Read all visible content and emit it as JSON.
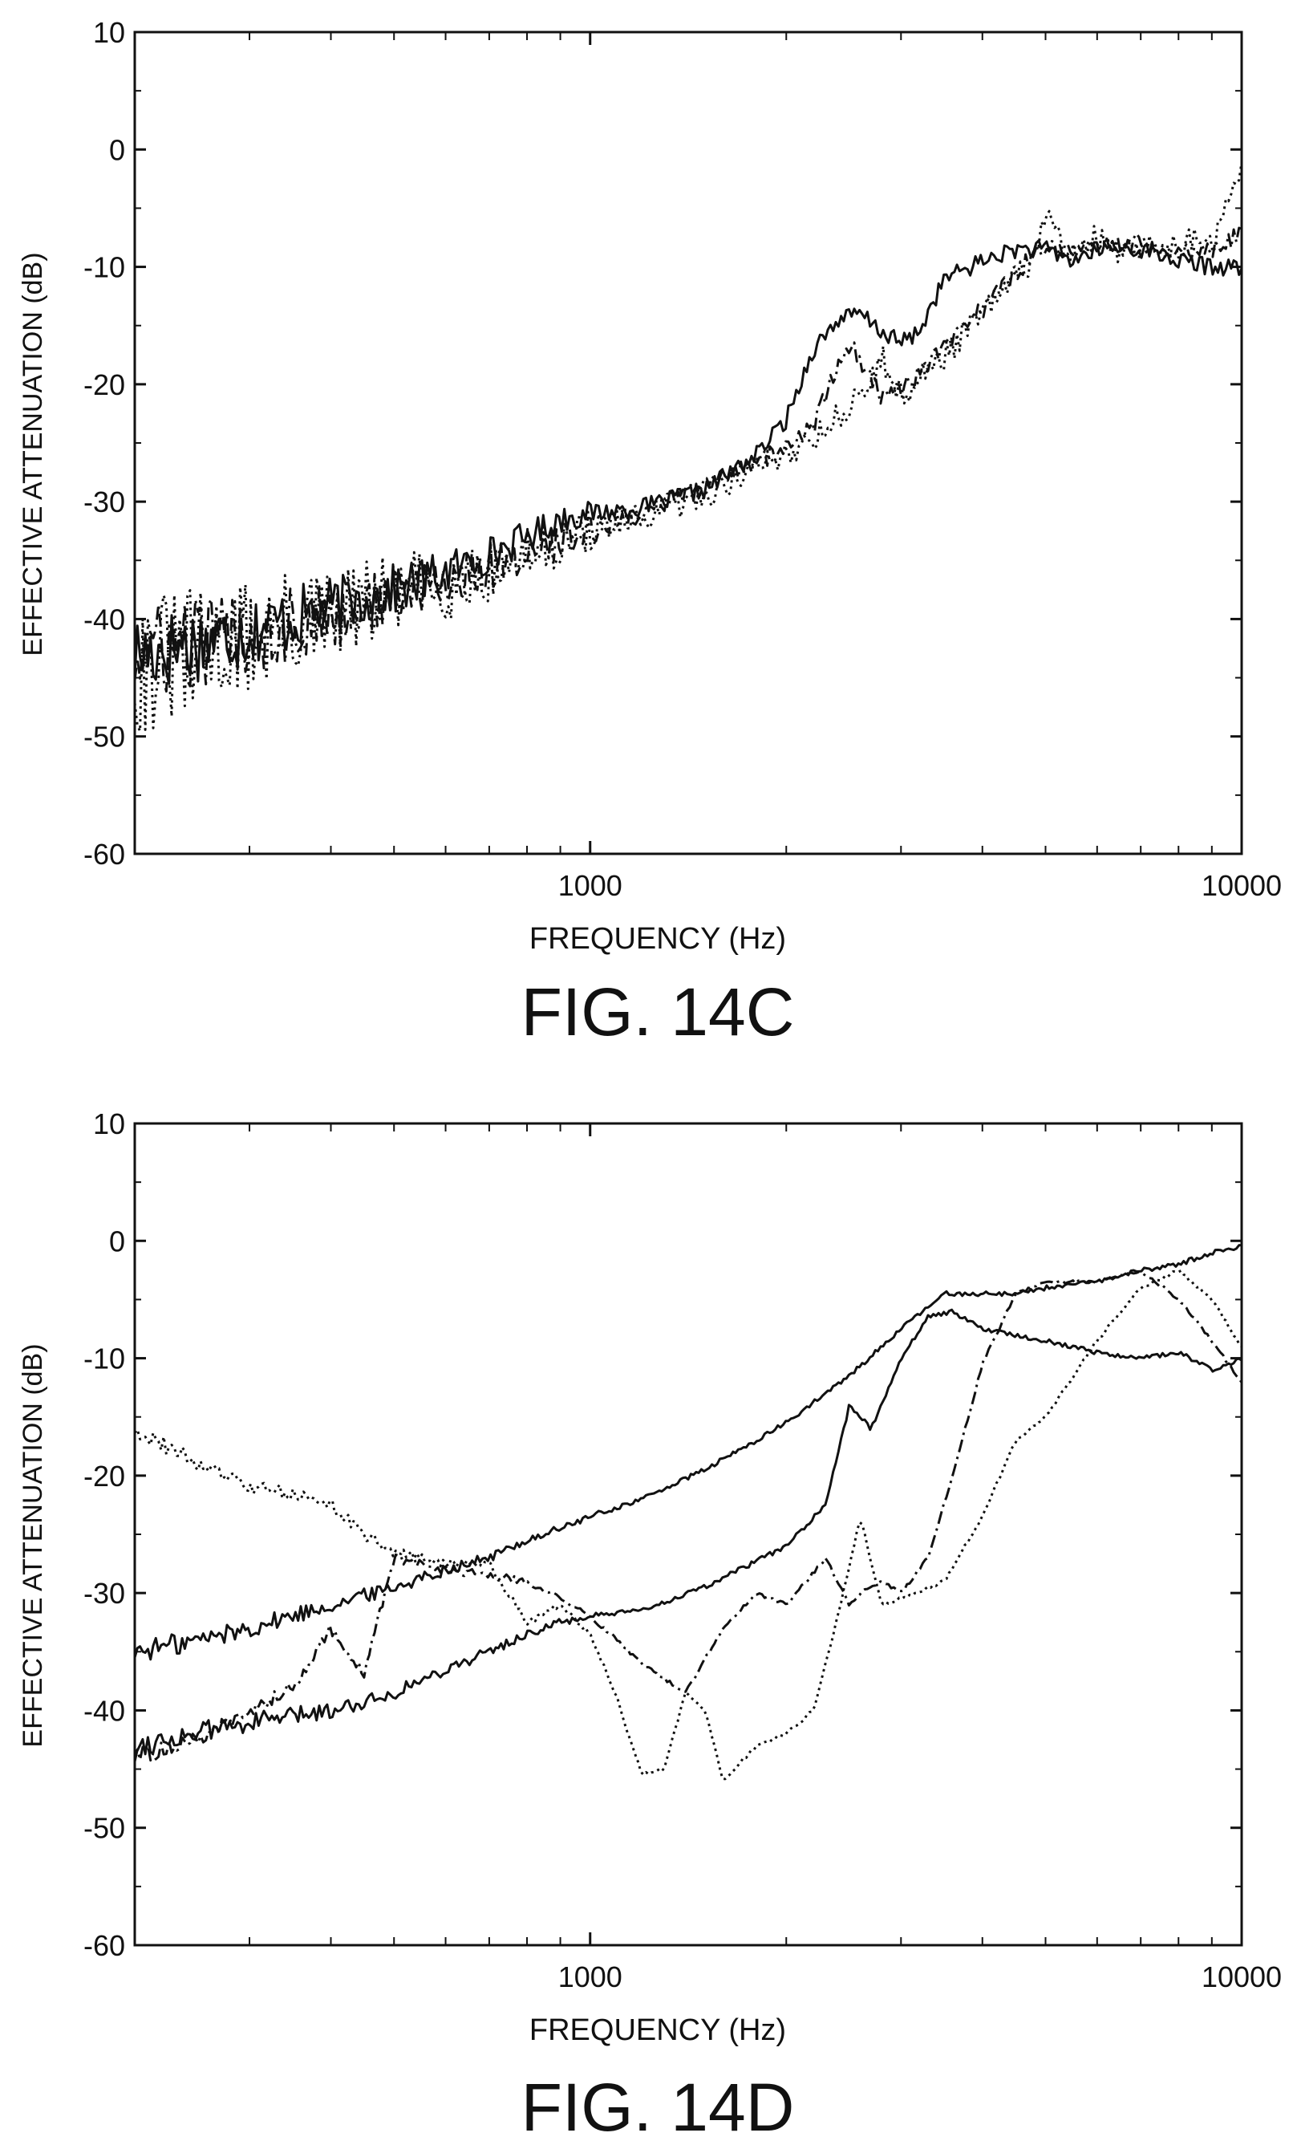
{
  "chart_data": [
    {
      "type": "line",
      "caption": "FIG. 14C",
      "xlabel": "FREQUENCY (Hz)",
      "ylabel": "EFFECTIVE ATTENUATION (dB)",
      "x_scale": "log",
      "xlim": [
        200,
        10000
      ],
      "ylim": [
        -60,
        10
      ],
      "x_tick_labels": [
        {
          "value": 1000,
          "label": "1000"
        },
        {
          "value": 10000,
          "label": "10000"
        }
      ],
      "y_ticks": [
        10,
        0,
        -10,
        -20,
        -30,
        -40,
        -50,
        -60
      ],
      "grid": false,
      "legend": "none",
      "series": [
        {
          "style": "solid",
          "noise": 3.0,
          "x": [
            200,
            250,
            300,
            400,
            500,
            600,
            700,
            800,
            900,
            1000,
            1200,
            1500,
            1800,
            2000,
            2200,
            2400,
            2600,
            2800,
            3000,
            3200,
            3500,
            4000,
            4500,
            5000,
            5500,
            6000,
            7000,
            8000,
            9000,
            10000
          ],
          "y": [
            -43,
            -42,
            -41,
            -39,
            -37.5,
            -36,
            -34.5,
            -33,
            -31.5,
            -31,
            -30.5,
            -29,
            -26,
            -23,
            -17,
            -14.5,
            -14,
            -15.5,
            -16.5,
            -15.5,
            -11,
            -9.5,
            -8.5,
            -8.5,
            -9.5,
            -8.5,
            -8.5,
            -9.5,
            -10,
            -10
          ]
        },
        {
          "style": "dash-dot",
          "noise": 3.5,
          "x": [
            200,
            250,
            300,
            400,
            500,
            600,
            700,
            800,
            900,
            1000,
            1200,
            1500,
            1800,
            2000,
            2200,
            2300,
            2400,
            2500,
            2600,
            2800,
            3000,
            3500,
            4000,
            4500,
            5000,
            5500,
            6000,
            7000,
            8000,
            9000,
            10000
          ],
          "y": [
            -43,
            -42,
            -41,
            -40,
            -38,
            -37,
            -35.5,
            -34.5,
            -33.5,
            -32.5,
            -31,
            -28.5,
            -26.5,
            -25.5,
            -23.5,
            -21,
            -18.5,
            -16.5,
            -18,
            -21,
            -20.5,
            -17,
            -13.5,
            -10.5,
            -8,
            -9,
            -8,
            -8,
            -8.5,
            -8.5,
            -7
          ]
        },
        {
          "style": "dotted",
          "noise": 5.0,
          "x": [
            200,
            250,
            300,
            400,
            500,
            600,
            700,
            800,
            900,
            1000,
            1200,
            1500,
            1800,
            2000,
            2200,
            2500,
            2700,
            2800,
            2900,
            3000,
            3500,
            4000,
            4500,
            4800,
            5000,
            5200,
            5500,
            6000,
            6500,
            7000,
            8000,
            9000,
            10000
          ],
          "y": [
            -44,
            -43,
            -41.5,
            -40,
            -38,
            -37,
            -36,
            -34.5,
            -33.5,
            -32.5,
            -31.5,
            -29.5,
            -27,
            -26,
            -24.5,
            -22,
            -20,
            -17,
            -20.5,
            -21,
            -17.5,
            -14,
            -11,
            -9,
            -5.5,
            -7.5,
            -8.5,
            -7.5,
            -9,
            -8.5,
            -8,
            -8,
            -2
          ]
        }
      ]
    },
    {
      "type": "line",
      "caption": "FIG. 14D",
      "xlabel": "FREQUENCY (Hz)",
      "ylabel": "EFFECTIVE ATTENUATION (dB)",
      "x_scale": "log",
      "xlim": [
        200,
        10000
      ],
      "ylim": [
        -60,
        10
      ],
      "x_tick_labels": [
        {
          "value": 1000,
          "label": "1000"
        },
        {
          "value": 10000,
          "label": "10000"
        }
      ],
      "y_ticks": [
        10,
        0,
        -10,
        -20,
        -30,
        -40,
        -50,
        -60
      ],
      "grid": false,
      "legend": "none",
      "series": [
        {
          "style": "solid",
          "noise": 0.8,
          "x": [
            200,
            250,
            300,
            400,
            500,
            600,
            700,
            800,
            900,
            1000,
            1200,
            1500,
            1800,
            2000,
            2500,
            3000,
            3500,
            4000,
            4500,
            5000,
            6000,
            7000,
            8000,
            9000,
            10000
          ],
          "y": [
            -35,
            -34,
            -33,
            -31,
            -29.5,
            -28,
            -27,
            -25.5,
            -24.5,
            -23.5,
            -22,
            -19.5,
            -17,
            -15.5,
            -11.5,
            -7.5,
            -4.5,
            -4.5,
            -4.5,
            -4,
            -3.5,
            -2.5,
            -2,
            -1,
            -0.5
          ]
        },
        {
          "style": "solid",
          "noise": 0.8,
          "x": [
            200,
            300,
            400,
            500,
            600,
            700,
            800,
            900,
            1000,
            1200,
            1500,
            2000,
            2300,
            2500,
            2700,
            3000,
            3300,
            3600,
            4000,
            5000,
            6000,
            7000,
            8000,
            9000,
            10000
          ],
          "y": [
            -43,
            -41,
            -40,
            -38.5,
            -36.5,
            -35,
            -33.5,
            -32.5,
            -32,
            -31.5,
            -29.5,
            -26,
            -22.5,
            -14,
            -16,
            -10,
            -6.5,
            -6,
            -7.5,
            -8.5,
            -9.5,
            -10,
            -9.5,
            -11,
            -10
          ]
        },
        {
          "style": "dash-dot",
          "noise": 0.6,
          "x": [
            200,
            250,
            300,
            350,
            400,
            450,
            500,
            600,
            700,
            800,
            900,
            1000,
            1100,
            1200,
            1400,
            1600,
            1800,
            2000,
            2300,
            2500,
            2600,
            2800,
            3000,
            3300,
            3600,
            4000,
            4500,
            5000,
            6000,
            7000,
            8000,
            9000,
            10000
          ],
          "y": [
            -44,
            -42.5,
            -40,
            -38,
            -33,
            -37,
            -27,
            -28,
            -28.5,
            -29,
            -30.5,
            -32,
            -34,
            -36,
            -38.5,
            -33,
            -30,
            -31,
            -27,
            -31,
            -30,
            -29,
            -30,
            -27,
            -20,
            -10.5,
            -4.5,
            -3.5,
            -3.5,
            -2.5,
            -5,
            -8.5,
            -12
          ]
        },
        {
          "style": "dotted",
          "noise": 0.6,
          "x": [
            200,
            250,
            300,
            350,
            400,
            450,
            500,
            550,
            600,
            700,
            800,
            900,
            1000,
            1100,
            1200,
            1300,
            1400,
            1500,
            1600,
            1800,
            2000,
            2200,
            2400,
            2600,
            2800,
            3000,
            3500,
            4000,
            4500,
            5000,
            6000,
            7000,
            8000,
            9000,
            10000
          ],
          "y": [
            -16,
            -19,
            -21,
            -21.5,
            -22.5,
            -25,
            -26.5,
            -27,
            -27.5,
            -27.5,
            -32.5,
            -31,
            -33.5,
            -39,
            -45.5,
            -45,
            -38.5,
            -40,
            -46,
            -43,
            -42,
            -40,
            -32,
            -23.5,
            -31,
            -30.5,
            -29,
            -23.5,
            -17,
            -15,
            -8.5,
            -4,
            -2.5,
            -5,
            -9
          ]
        }
      ]
    }
  ]
}
